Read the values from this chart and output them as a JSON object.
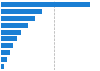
{
  "values": [
    100,
    46,
    38,
    30,
    23,
    18,
    13,
    10,
    7,
    3
  ],
  "bar_color": "#1a7fd4",
  "background_color": "#ffffff",
  "grid_color": "#aaaaaa",
  "xlim": [
    0,
    110
  ],
  "n_bars": 10,
  "bar_height": 0.72,
  "dashed_line_x": 60
}
